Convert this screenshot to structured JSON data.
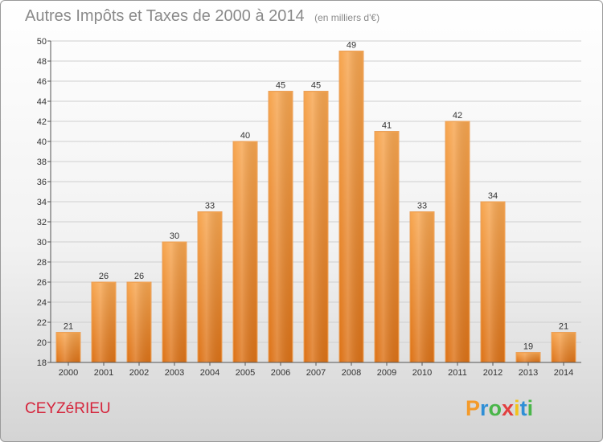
{
  "chart_data": {
    "type": "bar",
    "title": "Autres Impôts et Taxes de 2000 à 2014",
    "unit_note": "(en milliers d'€)",
    "categories": [
      "2000",
      "2001",
      "2002",
      "2003",
      "2004",
      "2005",
      "2006",
      "2007",
      "2008",
      "2009",
      "2010",
      "2011",
      "2012",
      "2013",
      "2014"
    ],
    "values": [
      21,
      26,
      26,
      30,
      33,
      40,
      45,
      45,
      49,
      41,
      33,
      42,
      34,
      19,
      21
    ],
    "ylim": [
      18,
      50
    ],
    "yticks": [
      18,
      20,
      22,
      24,
      26,
      28,
      30,
      32,
      34,
      36,
      38,
      40,
      42,
      44,
      46,
      48,
      50
    ],
    "grid": true,
    "xlabel": "",
    "ylabel": "",
    "bar_color": "#f08f2e"
  },
  "footer": {
    "commune": "CEYZéRIEU",
    "logo": {
      "letters": [
        "P",
        "r",
        "o",
        "x",
        "i",
        "t",
        "i"
      ],
      "colors": [
        "#f49a2a",
        "#2f8fd6",
        "#4ab64a",
        "#e23f3f",
        "#f2c21b",
        "#2f8fd6",
        "#4ab64a"
      ]
    }
  }
}
